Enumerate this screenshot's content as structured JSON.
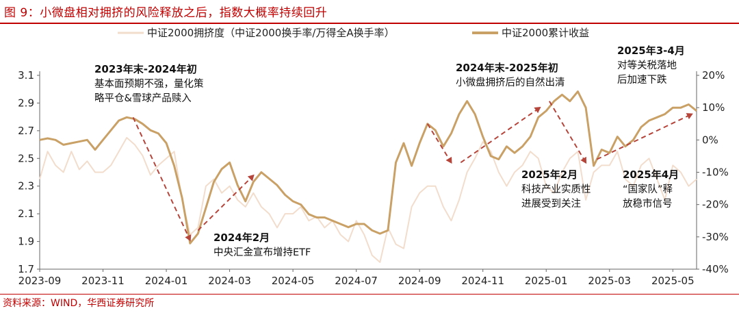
{
  "figure_title": "图 9：小微盘相对拥挤的风险释放之后，指数大概率持续回升",
  "source": "资料来源：WIND，华西证券研究所",
  "colors": {
    "accent": "#c00000",
    "turnover_line": "#f2ddcd",
    "cum_return_line": "#c9a066",
    "arrow": "#b5443a"
  },
  "chart_data": {
    "type": "line",
    "legend_position": "top",
    "grid": false,
    "x_ticks": [
      "2023-09",
      "2023-11",
      "2024-01",
      "2024-03",
      "2024-05",
      "2024-07",
      "2024-09",
      "2024-11",
      "2025-01",
      "2025-03",
      "2025-05"
    ],
    "y_left": {
      "ticks": [
        "3.1",
        "2.9",
        "2.7",
        "2.5",
        "2.3",
        "2.1",
        "1.9",
        "1.7"
      ],
      "range": [
        1.7,
        3.1
      ]
    },
    "y_right": {
      "ticks": [
        "20%",
        "10%",
        "0%",
        "-10%",
        "-20%",
        "-30%",
        "-40%"
      ],
      "range": [
        -40,
        20
      ],
      "unit": "%"
    },
    "series": [
      {
        "name": "中证2000拥挤度（中证2000换手率/万得全A换手率）",
        "axis": "left",
        "months": [
          0,
          0.25,
          0.5,
          0.75,
          1,
          1.25,
          1.5,
          1.75,
          2,
          2.25,
          2.5,
          2.75,
          3,
          3.25,
          3.5,
          3.75,
          4,
          4.25,
          4.5,
          4.75,
          5,
          5.25,
          5.5,
          5.75,
          6,
          6.25,
          6.5,
          6.75,
          7,
          7.25,
          7.5,
          7.75,
          8,
          8.25,
          8.5,
          8.75,
          9,
          9.25,
          9.5,
          9.75,
          10,
          10.25,
          10.5,
          10.75,
          11,
          11.25,
          11.5,
          11.75,
          12,
          12.25,
          12.5,
          12.75,
          13,
          13.25,
          13.5,
          13.75,
          14,
          14.25,
          14.5,
          14.75,
          15,
          15.25,
          15.5,
          15.75,
          16,
          16.25,
          16.5,
          16.75,
          17,
          17.25,
          17.5,
          17.75,
          18,
          18.25,
          18.5,
          18.75,
          19,
          19.25,
          19.5,
          19.75,
          20,
          20.25,
          20.5,
          20.75
        ],
        "values": [
          2.35,
          2.55,
          2.45,
          2.4,
          2.55,
          2.42,
          2.48,
          2.4,
          2.4,
          2.45,
          2.55,
          2.65,
          2.6,
          2.52,
          2.38,
          2.45,
          2.5,
          2.55,
          2.2,
          1.95,
          2.0,
          2.3,
          2.35,
          2.25,
          2.3,
          2.2,
          2.15,
          2.25,
          2.15,
          2.1,
          2.0,
          2.1,
          2.1,
          2.15,
          2.05,
          2.08,
          2.0,
          2.05,
          1.95,
          1.9,
          2.05,
          1.95,
          1.8,
          1.75,
          2.0,
          1.88,
          1.85,
          2.15,
          2.25,
          2.3,
          2.3,
          2.15,
          2.05,
          2.2,
          2.4,
          2.5,
          2.62,
          2.55,
          2.4,
          2.3,
          2.4,
          2.45,
          2.55,
          2.5,
          2.3,
          2.25,
          2.4,
          2.5,
          2.55,
          2.2,
          2.4,
          2.45,
          2.45,
          2.55,
          2.35,
          2.3,
          2.45,
          2.5,
          2.35,
          2.2,
          2.45,
          2.4,
          2.3,
          2.35
        ]
      },
      {
        "name": "中证2000累计收益",
        "axis": "right",
        "unit": "%",
        "months": [
          0,
          0.25,
          0.5,
          0.75,
          1,
          1.25,
          1.5,
          1.75,
          2,
          2.25,
          2.5,
          2.75,
          3,
          3.25,
          3.5,
          3.75,
          4,
          4.25,
          4.5,
          4.75,
          5,
          5.25,
          5.5,
          5.75,
          6,
          6.25,
          6.5,
          6.75,
          7,
          7.25,
          7.5,
          7.75,
          8,
          8.25,
          8.5,
          8.75,
          9,
          9.25,
          9.5,
          9.75,
          10,
          10.25,
          10.5,
          10.75,
          11,
          11.25,
          11.5,
          11.75,
          12,
          12.25,
          12.5,
          12.75,
          13,
          13.25,
          13.5,
          13.75,
          14,
          14.25,
          14.5,
          14.75,
          15,
          15.25,
          15.5,
          15.75,
          16,
          16.25,
          16.5,
          16.75,
          17,
          17.25,
          17.5,
          17.75,
          18,
          18.25,
          18.5,
          18.75,
          19,
          19.25,
          19.5,
          19.75,
          20,
          20.25,
          20.5,
          20.75
        ],
        "values": [
          0.0,
          0.5,
          0.0,
          -1.5,
          -1.0,
          -0.5,
          0.0,
          -3.0,
          0.0,
          3.0,
          6.0,
          7.0,
          6.5,
          5.0,
          3.0,
          2.0,
          -1.0,
          -8.0,
          -18.0,
          -32.0,
          -29.0,
          -21.0,
          -13.0,
          -9.0,
          -7.0,
          -14.0,
          -19.0,
          -13.0,
          -10.0,
          -12.0,
          -14.0,
          -17.0,
          -19.0,
          -20.0,
          -23.0,
          -24.0,
          -24.0,
          -25.0,
          -26.0,
          -27.0,
          -26.0,
          -26.0,
          -28.0,
          -29.0,
          -28.0,
          -7.0,
          -1.0,
          -8.0,
          -1.0,
          5.0,
          3.0,
          -2.0,
          2.0,
          8.0,
          12.0,
          8.0,
          1.0,
          -5.0,
          -6.0,
          -2.0,
          -4.0,
          -2.0,
          1.0,
          7.0,
          9.0,
          12.0,
          14.0,
          12.0,
          15.0,
          10.0,
          -8.0,
          -3.0,
          -4.0,
          1.0,
          -2.0,
          0.0,
          4.0,
          6.0,
          7.0,
          8.0,
          10.0,
          10.0,
          11.0,
          9.0
        ]
      }
    ],
    "annotations": [
      {
        "id": "a1",
        "lines": [
          "2023年末-2024年初",
          "基本面预期不强，量化策",
          "略平仓&雪球产品赎入"
        ]
      },
      {
        "id": "a2",
        "lines": [
          "2024年2月",
          "中央汇金宣布增持ETF"
        ]
      },
      {
        "id": "a3",
        "lines": [
          "2024年末-2025年初",
          "小微盘拥挤后的自然出清"
        ]
      },
      {
        "id": "a4",
        "lines": [
          "2025年2月",
          "科技产业实质性",
          "进展受到关注"
        ]
      },
      {
        "id": "a5",
        "lines": [
          "2025年3-4月",
          "对等关税落地",
          "后加速下跌"
        ]
      },
      {
        "id": "a6",
        "lines": [
          "2025年4月",
          "“国家队”释",
          "放稳市信号"
        ]
      }
    ]
  }
}
